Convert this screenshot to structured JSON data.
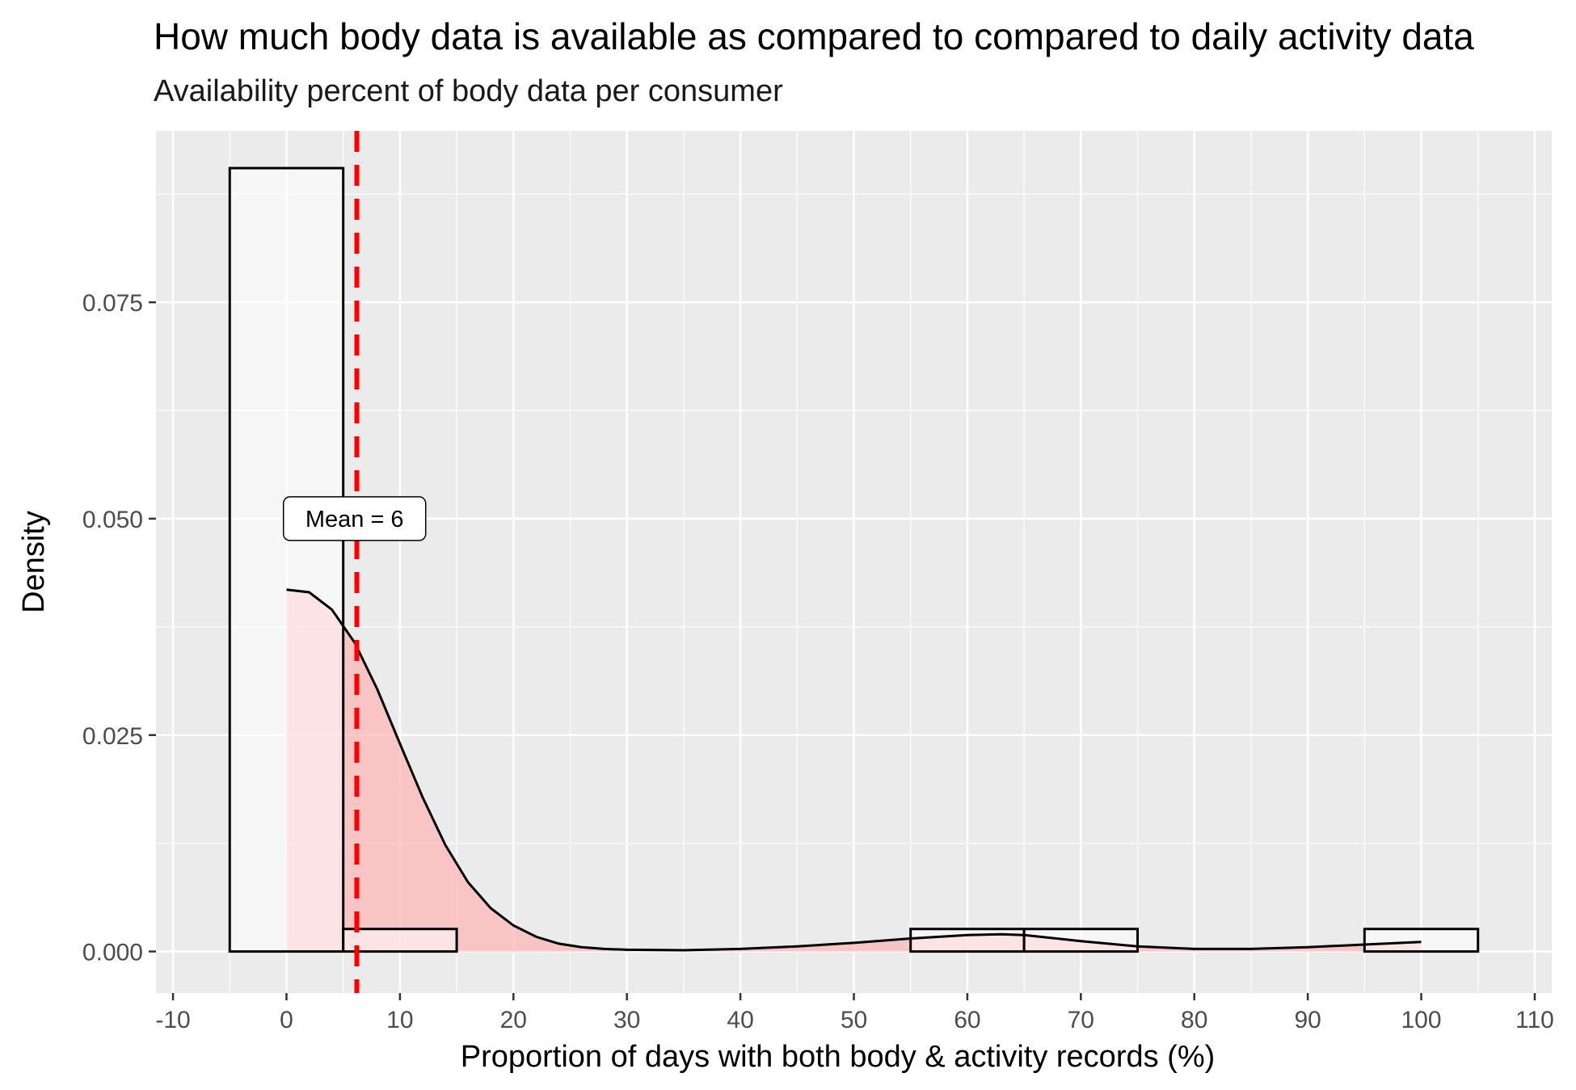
{
  "chart_data": {
    "type": "histogram",
    "title": "How much body data is available as compared to compared to daily activity data",
    "subtitle": "Availability percent of body data per consumer",
    "xlabel": "Proportion of days with both body & activity records (%)",
    "ylabel": "Density",
    "xlim": [
      -11.5,
      111.5
    ],
    "ylim": [
      -0.0048,
      0.0948
    ],
    "x_ticks": [
      -10,
      0,
      10,
      20,
      30,
      40,
      50,
      60,
      70,
      80,
      90,
      100,
      110
    ],
    "x_tick_labels": [
      "-10",
      "0",
      "10",
      "20",
      "30",
      "40",
      "50",
      "60",
      "70",
      "80",
      "90",
      "100",
      "110"
    ],
    "y_ticks": [
      0.0,
      0.025,
      0.05,
      0.075
    ],
    "y_tick_labels": [
      "0.000",
      "0.025",
      "0.050",
      "0.075"
    ],
    "bins": [
      {
        "x0": -5,
        "x1": 5,
        "density": 0.0905
      },
      {
        "x0": 5,
        "x1": 15,
        "density": 0.0026
      },
      {
        "x0": 55,
        "x1": 65,
        "density": 0.0026
      },
      {
        "x0": 65,
        "x1": 75,
        "density": 0.0026
      },
      {
        "x0": 95,
        "x1": 105,
        "density": 0.0026
      }
    ],
    "density_curve": {
      "x": [
        0,
        2,
        4,
        6,
        8,
        10,
        12,
        14,
        16,
        18,
        20,
        22,
        24,
        26,
        28,
        30,
        35,
        40,
        45,
        50,
        55,
        60,
        63,
        65,
        70,
        75,
        80,
        85,
        90,
        95,
        100
      ],
      "y": [
        0.0418,
        0.0415,
        0.0395,
        0.0357,
        0.0303,
        0.024,
        0.0178,
        0.0123,
        0.008,
        0.005,
        0.003,
        0.0017,
        0.0009,
        0.0005,
        0.0003,
        0.0002,
        0.00015,
        0.0003,
        0.0006,
        0.001,
        0.0015,
        0.0019,
        0.002,
        0.0019,
        0.0012,
        0.0006,
        0.0003,
        0.0003,
        0.0005,
        0.0008,
        0.0011
      ],
      "fill": "#ffb3b3"
    },
    "mean_line": {
      "x": 6.2,
      "color": "#ff0000",
      "style": "dashed"
    },
    "annotation": {
      "text": "Mean = 6",
      "x": 6,
      "y": 0.05
    },
    "background": "#ebebeb",
    "grid": true
  }
}
